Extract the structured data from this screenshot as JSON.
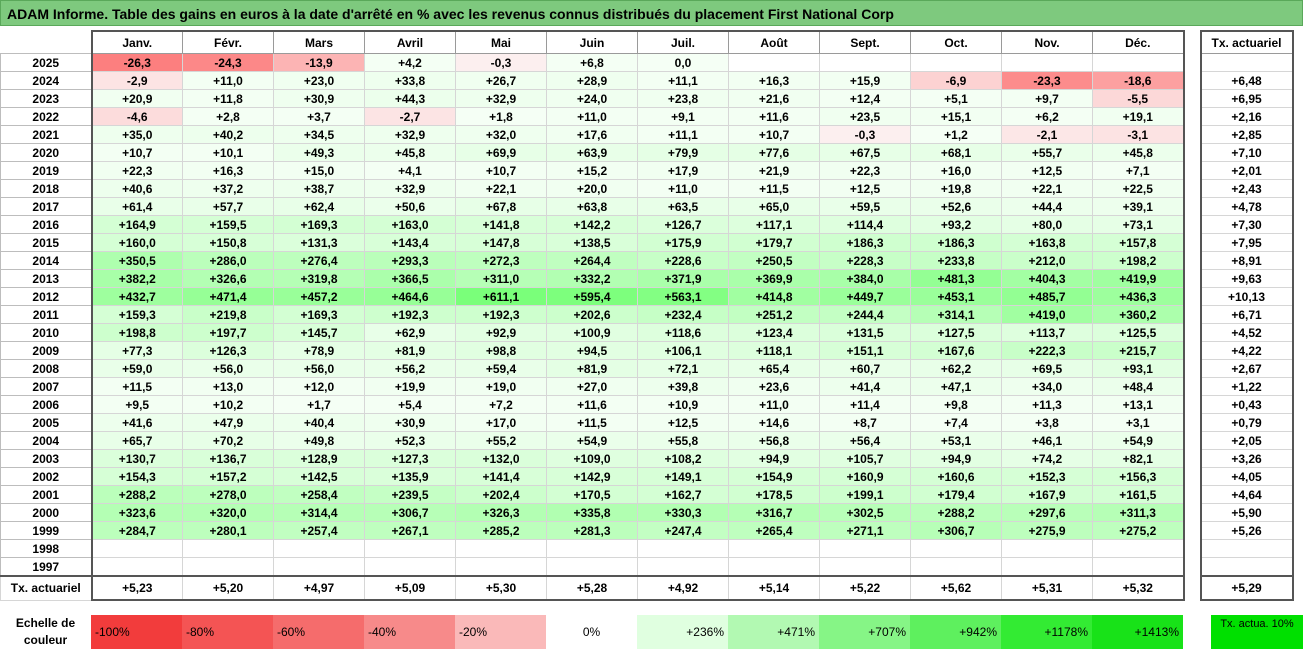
{
  "title": "ADAM Informe. Table des gains en euros à la date d'arrêté en % avec les revenus connus distribués du placement First National Corp",
  "months": [
    "Janv.",
    "Févr.",
    "Mars",
    "Avril",
    "Mai",
    "Juin",
    "Juil.",
    "Août",
    "Sept.",
    "Oct.",
    "Nov.",
    "Déc."
  ],
  "tx_header": "Tx. actuariel",
  "rows": [
    {
      "year": "2025",
      "values": [
        "-26,3",
        "-24,3",
        "-13,9",
        "+4,2",
        "-0,3",
        "+6,8",
        "0,0",
        "",
        "",
        "",
        "",
        ""
      ],
      "tx": ""
    },
    {
      "year": "2024",
      "values": [
        "-2,9",
        "+11,0",
        "+23,0",
        "+33,8",
        "+26,7",
        "+28,9",
        "+11,1",
        "+16,3",
        "+15,9",
        "-6,9",
        "-23,3",
        "-18,6"
      ],
      "tx": "+6,48"
    },
    {
      "year": "2023",
      "values": [
        "+20,9",
        "+11,8",
        "+30,9",
        "+44,3",
        "+32,9",
        "+24,0",
        "+23,8",
        "+21,6",
        "+12,4",
        "+5,1",
        "+9,7",
        "-5,5"
      ],
      "tx": "+6,95"
    },
    {
      "year": "2022",
      "values": [
        "-4,6",
        "+2,8",
        "+3,7",
        "-2,7",
        "+1,8",
        "+11,0",
        "+9,1",
        "+11,6",
        "+23,5",
        "+15,1",
        "+6,2",
        "+19,1"
      ],
      "tx": "+2,16"
    },
    {
      "year": "2021",
      "values": [
        "+35,0",
        "+40,2",
        "+34,5",
        "+32,9",
        "+32,0",
        "+17,6",
        "+11,1",
        "+10,7",
        "-0,3",
        "+1,2",
        "-2,1",
        "-3,1"
      ],
      "tx": "+2,85"
    },
    {
      "year": "2020",
      "values": [
        "+10,7",
        "+10,1",
        "+49,3",
        "+45,8",
        "+69,9",
        "+63,9",
        "+79,9",
        "+77,6",
        "+67,5",
        "+68,1",
        "+55,7",
        "+45,8"
      ],
      "tx": "+7,10"
    },
    {
      "year": "2019",
      "values": [
        "+22,3",
        "+16,3",
        "+15,0",
        "+4,1",
        "+10,7",
        "+15,2",
        "+17,9",
        "+21,9",
        "+22,3",
        "+16,0",
        "+12,5",
        "+7,1"
      ],
      "tx": "+2,01"
    },
    {
      "year": "2018",
      "values": [
        "+40,6",
        "+37,2",
        "+38,7",
        "+32,9",
        "+22,1",
        "+20,0",
        "+11,0",
        "+11,5",
        "+12,5",
        "+19,8",
        "+22,1",
        "+22,5"
      ],
      "tx": "+2,43"
    },
    {
      "year": "2017",
      "values": [
        "+61,4",
        "+57,7",
        "+62,4",
        "+50,6",
        "+67,8",
        "+63,8",
        "+63,5",
        "+65,0",
        "+59,5",
        "+52,6",
        "+44,4",
        "+39,1"
      ],
      "tx": "+4,78"
    },
    {
      "year": "2016",
      "values": [
        "+164,9",
        "+159,5",
        "+169,3",
        "+163,0",
        "+141,8",
        "+142,2",
        "+126,7",
        "+117,1",
        "+114,4",
        "+93,2",
        "+80,0",
        "+73,1"
      ],
      "tx": "+7,30"
    },
    {
      "year": "2015",
      "values": [
        "+160,0",
        "+150,8",
        "+131,3",
        "+143,4",
        "+147,8",
        "+138,5",
        "+175,9",
        "+179,7",
        "+186,3",
        "+186,3",
        "+163,8",
        "+157,8"
      ],
      "tx": "+7,95"
    },
    {
      "year": "2014",
      "values": [
        "+350,5",
        "+286,0",
        "+276,4",
        "+293,3",
        "+272,3",
        "+264,4",
        "+228,6",
        "+250,5",
        "+228,3",
        "+233,8",
        "+212,0",
        "+198,2"
      ],
      "tx": "+8,91"
    },
    {
      "year": "2013",
      "values": [
        "+382,2",
        "+326,6",
        "+319,8",
        "+366,5",
        "+311,0",
        "+332,2",
        "+371,9",
        "+369,9",
        "+384,0",
        "+481,3",
        "+404,3",
        "+419,9"
      ],
      "tx": "+9,63"
    },
    {
      "year": "2012",
      "values": [
        "+432,7",
        "+471,4",
        "+457,2",
        "+464,6",
        "+611,1",
        "+595,4",
        "+563,1",
        "+414,8",
        "+449,7",
        "+453,1",
        "+485,7",
        "+436,3"
      ],
      "tx": "+10,13"
    },
    {
      "year": "2011",
      "values": [
        "+159,3",
        "+219,8",
        "+169,3",
        "+192,3",
        "+192,3",
        "+202,6",
        "+232,4",
        "+251,2",
        "+244,4",
        "+314,1",
        "+419,0",
        "+360,2"
      ],
      "tx": "+6,71"
    },
    {
      "year": "2010",
      "values": [
        "+198,8",
        "+197,7",
        "+145,7",
        "+62,9",
        "+92,9",
        "+100,9",
        "+118,6",
        "+123,4",
        "+131,5",
        "+127,5",
        "+113,7",
        "+125,5"
      ],
      "tx": "+4,52"
    },
    {
      "year": "2009",
      "values": [
        "+77,3",
        "+126,3",
        "+78,9",
        "+81,9",
        "+98,8",
        "+94,5",
        "+106,1",
        "+118,1",
        "+151,1",
        "+167,6",
        "+222,3",
        "+215,7"
      ],
      "tx": "+4,22"
    },
    {
      "year": "2008",
      "values": [
        "+59,0",
        "+56,0",
        "+56,0",
        "+56,2",
        "+59,4",
        "+81,9",
        "+72,1",
        "+65,4",
        "+60,7",
        "+62,2",
        "+69,5",
        "+93,1"
      ],
      "tx": "+2,67"
    },
    {
      "year": "2007",
      "values": [
        "+11,5",
        "+13,0",
        "+12,0",
        "+19,9",
        "+19,0",
        "+27,0",
        "+39,8",
        "+23,6",
        "+41,4",
        "+47,1",
        "+34,0",
        "+48,4"
      ],
      "tx": "+1,22"
    },
    {
      "year": "2006",
      "values": [
        "+9,5",
        "+10,2",
        "+1,7",
        "+5,4",
        "+7,2",
        "+11,6",
        "+10,9",
        "+11,0",
        "+11,4",
        "+9,8",
        "+11,3",
        "+13,1"
      ],
      "tx": "+0,43"
    },
    {
      "year": "2005",
      "values": [
        "+41,6",
        "+47,9",
        "+40,4",
        "+30,9",
        "+17,0",
        "+11,5",
        "+12,5",
        "+14,6",
        "+8,7",
        "+7,4",
        "+3,8",
        "+3,1"
      ],
      "tx": "+0,79"
    },
    {
      "year": "2004",
      "values": [
        "+65,7",
        "+70,2",
        "+49,8",
        "+52,3",
        "+55,2",
        "+54,9",
        "+55,8",
        "+56,8",
        "+56,4",
        "+53,1",
        "+46,1",
        "+54,9"
      ],
      "tx": "+2,05"
    },
    {
      "year": "2003",
      "values": [
        "+130,7",
        "+136,7",
        "+128,9",
        "+127,3",
        "+132,0",
        "+109,0",
        "+108,2",
        "+94,9",
        "+105,7",
        "+94,9",
        "+74,2",
        "+82,1"
      ],
      "tx": "+3,26"
    },
    {
      "year": "2002",
      "values": [
        "+154,3",
        "+157,2",
        "+142,5",
        "+135,9",
        "+141,4",
        "+142,9",
        "+149,1",
        "+154,9",
        "+160,9",
        "+160,6",
        "+152,3",
        "+156,3"
      ],
      "tx": "+4,05"
    },
    {
      "year": "2001",
      "values": [
        "+288,2",
        "+278,0",
        "+258,4",
        "+239,5",
        "+202,4",
        "+170,5",
        "+162,7",
        "+178,5",
        "+199,1",
        "+179,4",
        "+167,9",
        "+161,5"
      ],
      "tx": "+4,64"
    },
    {
      "year": "2000",
      "values": [
        "+323,6",
        "+320,0",
        "+314,4",
        "+306,7",
        "+326,3",
        "+335,8",
        "+330,3",
        "+316,7",
        "+302,5",
        "+288,2",
        "+297,6",
        "+311,3"
      ],
      "tx": "+5,90"
    },
    {
      "year": "1999",
      "values": [
        "+284,7",
        "+280,1",
        "+257,4",
        "+267,1",
        "+285,2",
        "+281,3",
        "+247,4",
        "+265,4",
        "+271,1",
        "+306,7",
        "+275,9",
        "+275,2"
      ],
      "tx": "+5,26"
    },
    {
      "year": "1998",
      "values": [
        "",
        "",
        "",
        "",
        "",
        "",
        "",
        "",
        "",
        "",
        "",
        ""
      ],
      "tx": ""
    },
    {
      "year": "1997",
      "values": [
        "",
        "",
        "",
        "",
        "",
        "",
        "",
        "",
        "",
        "",
        "",
        ""
      ],
      "tx": ""
    }
  ],
  "footer": {
    "label": "Tx. actuariel",
    "values": [
      "+5,23",
      "+5,20",
      "+4,97",
      "+5,09",
      "+5,30",
      "+5,28",
      "+4,92",
      "+5,14",
      "+5,22",
      "+5,62",
      "+5,31",
      "+5,32"
    ],
    "tx": "+5,29"
  },
  "scale": {
    "label": "Echelle de couleur",
    "steps": [
      {
        "text": "-100%",
        "color": "#f23c3c"
      },
      {
        "text": "-80%",
        "color": "#f45454"
      },
      {
        "text": "-60%",
        "color": "#f56c6c"
      },
      {
        "text": "-40%",
        "color": "#f78a8a"
      },
      {
        "text": "-20%",
        "color": "#fab9b9"
      },
      {
        "text": "0%",
        "color": "#ffffff"
      },
      {
        "text": "+236%",
        "color": "#e0ffe0"
      },
      {
        "text": "+471%",
        "color": "#b2f9b2"
      },
      {
        "text": "+707%",
        "color": "#86f586"
      },
      {
        "text": "+942%",
        "color": "#5ef05e"
      },
      {
        "text": "+1178%",
        "color": "#33eb33"
      },
      {
        "text": "+1413%",
        "color": "#18e218"
      }
    ],
    "final": "Tx. actua. 10%",
    "final_color": "#00e000"
  }
}
